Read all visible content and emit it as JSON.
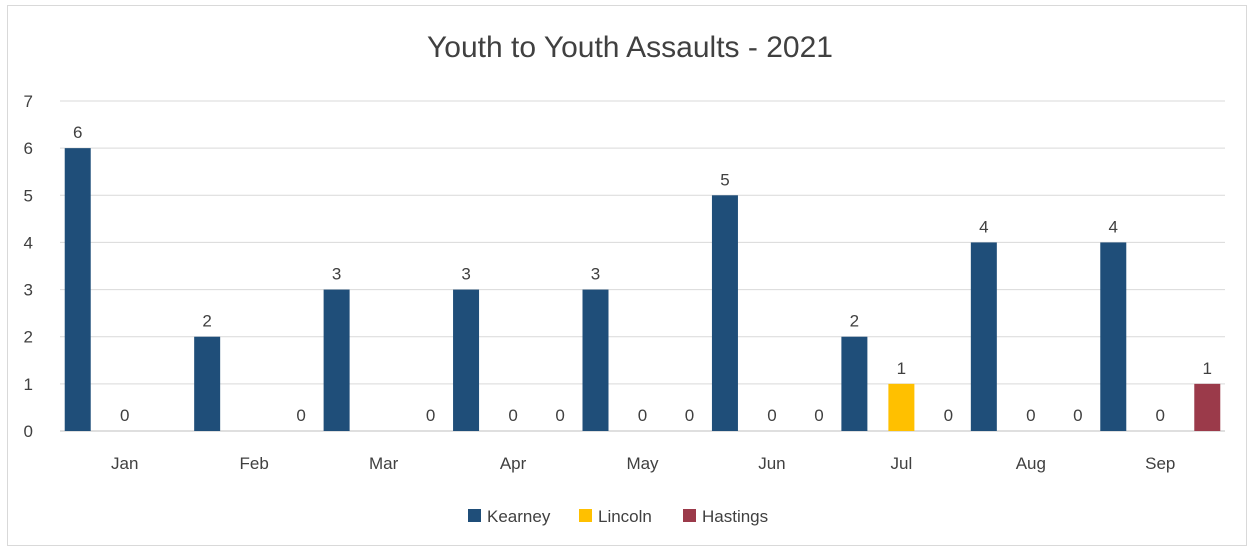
{
  "chart_data": {
    "type": "bar",
    "title": "Youth to Youth Assaults - 2021",
    "xlabel": "",
    "ylabel": "",
    "categories": [
      "Jan",
      "Feb",
      "Mar",
      "Apr",
      "May",
      "Jun",
      "Jul",
      "Aug",
      "Sep"
    ],
    "ylim": [
      0,
      7
    ],
    "yticks": [
      "0",
      "1",
      "2",
      "3",
      "4",
      "5",
      "6",
      "7"
    ],
    "grid": true,
    "legend_position": "bottom",
    "series": [
      {
        "name": "Kearney",
        "color": "#1f4e79",
        "values": [
          6,
          2,
          3,
          3,
          3,
          5,
          2,
          4,
          4
        ],
        "labels": [
          "6",
          "2",
          "3",
          "3",
          "3",
          "5",
          "2",
          "4",
          "4"
        ]
      },
      {
        "name": "Lincoln",
        "color": "#ffc000",
        "values": [
          0,
          0,
          0,
          0,
          0,
          0,
          1,
          0,
          0
        ],
        "labels": [
          "0",
          null,
          null,
          "0",
          "0",
          "0",
          "1",
          "0",
          "0"
        ]
      },
      {
        "name": "Hastings",
        "color": "#9b3a4a",
        "values": [
          null,
          0,
          0,
          0,
          0,
          0,
          0,
          0,
          1
        ],
        "labels": [
          null,
          "0",
          "0",
          "0",
          "0",
          "0",
          "0",
          "0",
          "1"
        ]
      }
    ]
  }
}
